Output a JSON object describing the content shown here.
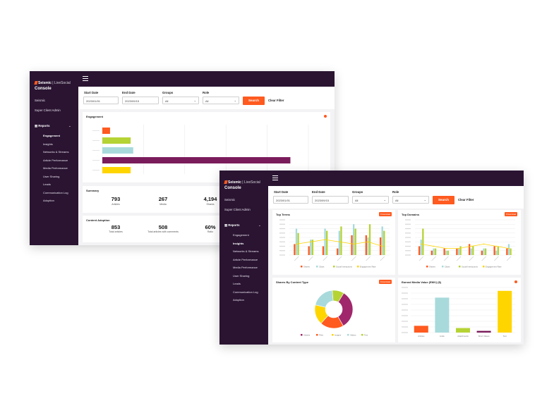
{
  "brand": {
    "name": "Seismic",
    "sub": "| LiveSocial",
    "console": "Console"
  },
  "colors": {
    "sidebar": "#2a1432",
    "accent": "#ff5a1f",
    "orange": "#ff5a1f",
    "lime": "#b5d334",
    "lightblue": "#a8dadc",
    "purple": "#7a1c5b",
    "yellow": "#ffd500",
    "grid": "#e6e6e6"
  },
  "sidebar": {
    "links": [
      "Seismic",
      "Super Client Admin"
    ],
    "reports_label": "Reports",
    "items": [
      "Engagement",
      "Insights",
      "Networks & Streams",
      "Article Performance",
      "Media Performance",
      "User Sharing",
      "Leads",
      "Communication Log",
      "Adoption"
    ]
  },
  "filters": {
    "start_label": "Start Date",
    "start_value": "2023/01/01",
    "end_label": "End Date",
    "end_value": "2023/09/15",
    "groups_label": "Groups",
    "groups_value": "All",
    "role_label": "Role",
    "role_value": "All",
    "search_label": "Search",
    "clear_label": "Clear Filter"
  },
  "win1": {
    "active_item": "Engagement",
    "engagement": {
      "title": "Engagement",
      "chart_data": {
        "type": "bar",
        "orientation": "horizontal",
        "values": [
          3,
          11,
          12,
          73,
          11
        ],
        "xlim": [
          0,
          80
        ],
        "colors": [
          "#ff5a1f",
          "#b5d334",
          "#a8dadc",
          "#7a1c5b",
          "#ffd500"
        ]
      }
    },
    "summary": {
      "title": "Summary",
      "stats": [
        {
          "value": "793",
          "label": "Articles"
        },
        {
          "value": "267",
          "label": "Media"
        },
        {
          "value": "4,194",
          "label": "Shares"
        }
      ]
    },
    "adoption": {
      "title": "Content Adoption",
      "stats": [
        {
          "value": "853",
          "label": "Total articles"
        },
        {
          "value": "508",
          "label": "Total articles with comments"
        },
        {
          "value": "60%",
          "label": "Ratio"
        }
      ]
    }
  },
  "win2": {
    "active_item": "Insights",
    "download_label": "Download",
    "top_terms": {
      "title": "Top Terms",
      "legend": [
        "Shares",
        "Clicks",
        "Social Interactions",
        "Engagement Rate"
      ],
      "chart_data": {
        "type": "bar",
        "ylim": [
          0,
          16
        ],
        "series": [
          {
            "name": "Shares",
            "values": [
              5,
              4,
              4,
              3,
              9,
              9,
              8
            ],
            "color": "#ff5a1f"
          },
          {
            "name": "Clicks",
            "values": [
              12,
              7,
              12,
              11,
              14,
              8,
              13
            ],
            "color": "#a8dadc"
          },
          {
            "name": "Social Interactions",
            "values": [
              10,
              7,
              11,
              13,
              12,
              14,
              11
            ],
            "color": "#b5d334"
          },
          {
            "name": "Engagement Rate",
            "values": [
              5,
              6,
              7,
              6,
              5,
              6,
              4
            ],
            "color": "#ffd500"
          }
        ]
      }
    },
    "top_domains": {
      "title": "Top Domains",
      "legend": [
        "Shares",
        "Clicks",
        "Social Interactions",
        "Engagement Rate"
      ],
      "chart_data": {
        "type": "bar",
        "ylim": [
          0,
          16
        ],
        "series": [
          {
            "name": "Shares",
            "values": [
              4,
              2,
              3,
              3,
              5,
              2,
              4,
              3
            ],
            "color": "#ff5a1f"
          },
          {
            "name": "Clicks",
            "values": [
              7,
              3,
              2,
              3,
              3,
              3,
              2,
              5
            ],
            "color": "#a8dadc"
          },
          {
            "name": "Social Interactions",
            "values": [
              12,
              3,
              2,
              4,
              4,
              3,
              4,
              3
            ],
            "color": "#b5d334"
          },
          {
            "name": "Engagement Rate",
            "values": [
              5,
              4,
              3,
              3,
              4,
              5,
              4,
              3
            ],
            "color": "#ffd500"
          }
        ]
      }
    },
    "shares_by_type": {
      "title": "Shares By Content Type",
      "legend": [
        "Articles",
        "Files",
        "Images",
        "Videos",
        "Text"
      ],
      "chart_data": {
        "type": "pie",
        "values": [
          33,
          20,
          17,
          20,
          10
        ],
        "colors": [
          "#a0276b",
          "#ff5a1f",
          "#ffd500",
          "#a8dadc",
          "#b5d334"
        ]
      }
    },
    "emv": {
      "title": "Earned Media Value (EMV) ($)",
      "categories": [
        "Articles",
        "Links",
        "Attachments",
        "Short Videos",
        "Text"
      ],
      "chart_data": {
        "type": "bar",
        "values": [
          12,
          62,
          8,
          3,
          74
        ],
        "ylim": [
          0,
          80
        ],
        "colors": [
          "#ff5a1f",
          "#a8dadc",
          "#b5d334",
          "#7a1c5b",
          "#ffd500"
        ]
      }
    }
  }
}
